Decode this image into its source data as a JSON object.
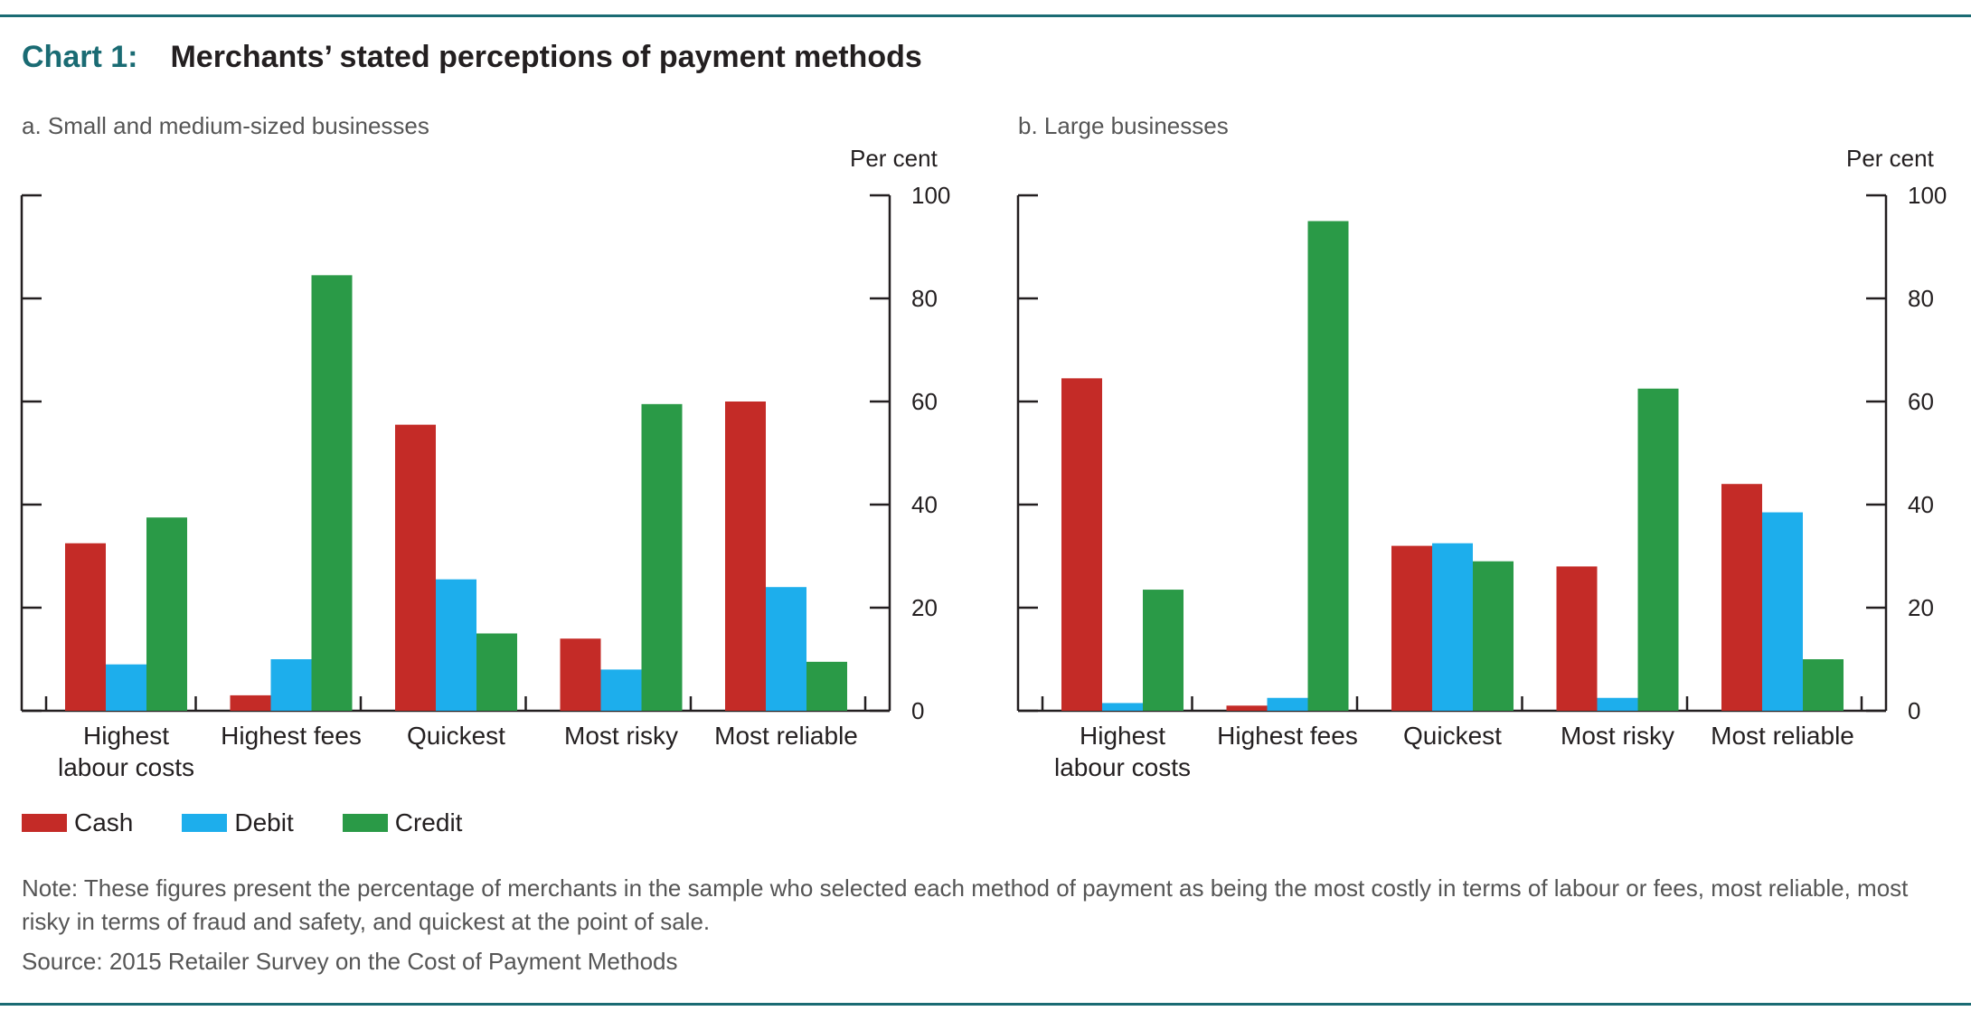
{
  "header": {
    "chart_number": "Chart 1:",
    "title": "Merchants’ stated perceptions of payment methods"
  },
  "legend": [
    {
      "label": "Cash",
      "color": "#c42b27"
    },
    {
      "label": "Debit",
      "color": "#1daeec"
    },
    {
      "label": "Credit",
      "color": "#2a9a47"
    }
  ],
  "note": "Note: These figures present the percentage of merchants in the sample who selected each method of payment as being the most costly in terms of labour or fees, most reliable, most risky in terms of fraud and safety, and quickest at the point of sale.",
  "source": "Source: 2015 Retailer Survey on the Cost of Payment Methods",
  "chart_data": [
    {
      "type": "bar",
      "title": "a. Small and medium-sized businesses",
      "ylabel": "Per cent",
      "ylim": [
        0,
        100
      ],
      "yticks": [
        "0",
        "20",
        "40",
        "60",
        "80",
        "100"
      ],
      "categories": [
        [
          "Highest",
          "labour costs"
        ],
        [
          "Highest fees"
        ],
        [
          "Quickest"
        ],
        [
          "Most risky"
        ],
        [
          "Most reliable"
        ]
      ],
      "series": [
        {
          "name": "Cash",
          "color": "#c42b27",
          "values": [
            32.5,
            3,
            55.5,
            14,
            60
          ]
        },
        {
          "name": "Debit",
          "color": "#1daeec",
          "values": [
            9,
            10,
            25.5,
            8,
            24
          ]
        },
        {
          "name": "Credit",
          "color": "#2a9a47",
          "values": [
            37.5,
            84.5,
            15,
            59.5,
            9.5
          ]
        }
      ]
    },
    {
      "type": "bar",
      "title": "b. Large businesses",
      "ylabel": "Per cent",
      "ylim": [
        0,
        100
      ],
      "yticks": [
        "0",
        "20",
        "40",
        "60",
        "80",
        "100"
      ],
      "categories": [
        [
          "Highest",
          "labour costs"
        ],
        [
          "Highest fees"
        ],
        [
          "Quickest"
        ],
        [
          "Most risky"
        ],
        [
          "Most reliable"
        ]
      ],
      "series": [
        {
          "name": "Cash",
          "color": "#c42b27",
          "values": [
            64.5,
            1,
            32,
            28,
            44
          ]
        },
        {
          "name": "Debit",
          "color": "#1daeec",
          "values": [
            1.5,
            2.5,
            32.5,
            2.5,
            38.5
          ]
        },
        {
          "name": "Credit",
          "color": "#2a9a47",
          "values": [
            23.5,
            95,
            29,
            62.5,
            10
          ]
        }
      ]
    }
  ]
}
